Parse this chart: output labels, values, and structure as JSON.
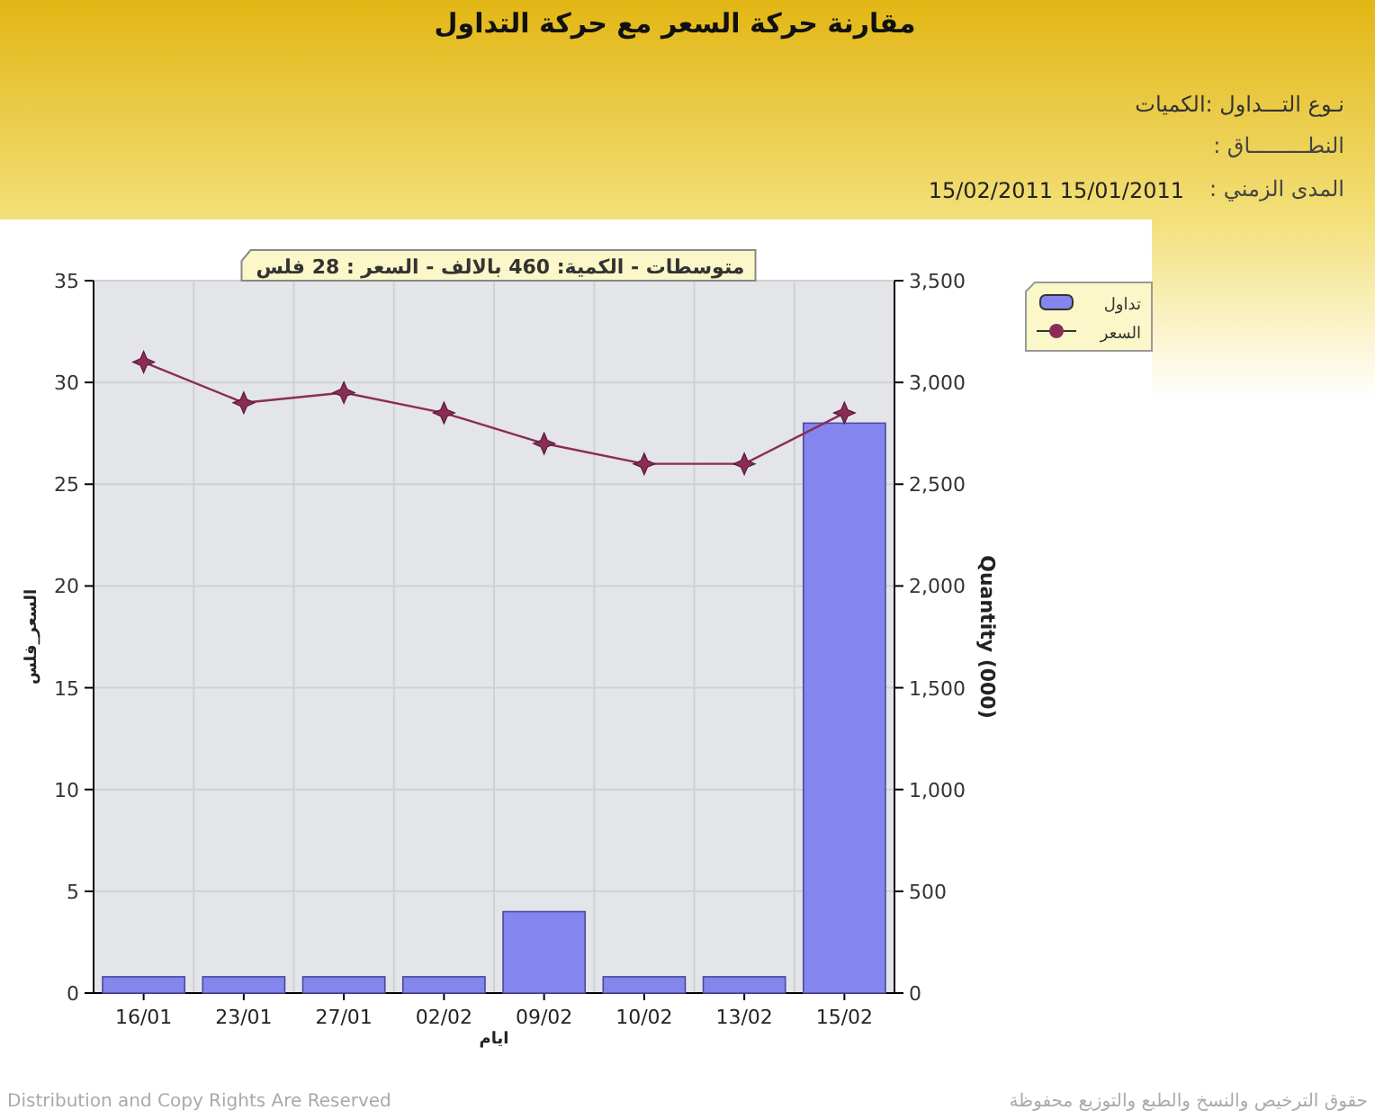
{
  "chart_data": {
    "type": "bar",
    "title": "مقارنة حركة السعر مع حركة التداول",
    "subtitle": "متوسطات - الكمية: 460 بالالف  - السعر : 28 فلس",
    "annotations": [
      "نـوع التـــداول :الكميات",
      "النطـــــــــاق :",
      "المدى الزمني :",
      "15/02/2011 15/01/2011",
      "Distribution and Copy Rights Are Reserved",
      "حقوق الترخيص والنسخ والطبع والتوزيع محفوظة"
    ],
    "categories": [
      "16/01",
      "23/01",
      "27/01",
      "02/02",
      "09/02",
      "10/02",
      "13/02",
      "15/02"
    ],
    "xlabel": "ايام",
    "ylabel": "السعر_فلس",
    "y2label": "Quantity (000)",
    "ylim": [
      0,
      35
    ],
    "yticks": [
      0,
      5,
      10,
      15,
      20,
      25,
      30,
      35
    ],
    "y2lim": [
      0,
      3500
    ],
    "y2ticks": [
      0,
      {
        "value": 500,
        "label": "500"
      },
      {
        "value": 1000,
        "label": "1,000"
      },
      {
        "value": 1500,
        "label": "1,500"
      },
      {
        "value": 2000,
        "label": "2,000"
      },
      {
        "value": 2500,
        "label": "2,500"
      },
      {
        "value": 3000,
        "label": "3,000"
      },
      {
        "value": 3500,
        "label": "3,500"
      }
    ],
    "grid": true,
    "legend": "top right",
    "marker": "star",
    "series": [
      {
        "name": "تداول",
        "axis": "y2",
        "color": "#8585ee",
        "values": [
          80,
          80,
          80,
          80,
          400,
          80,
          80,
          2800
        ]
      },
      {
        "name": "السعر",
        "type": "line",
        "color": "#8b2c57",
        "values": [
          31,
          29,
          29.5,
          28.5,
          27,
          26,
          26,
          28.5
        ]
      }
    ]
  }
}
